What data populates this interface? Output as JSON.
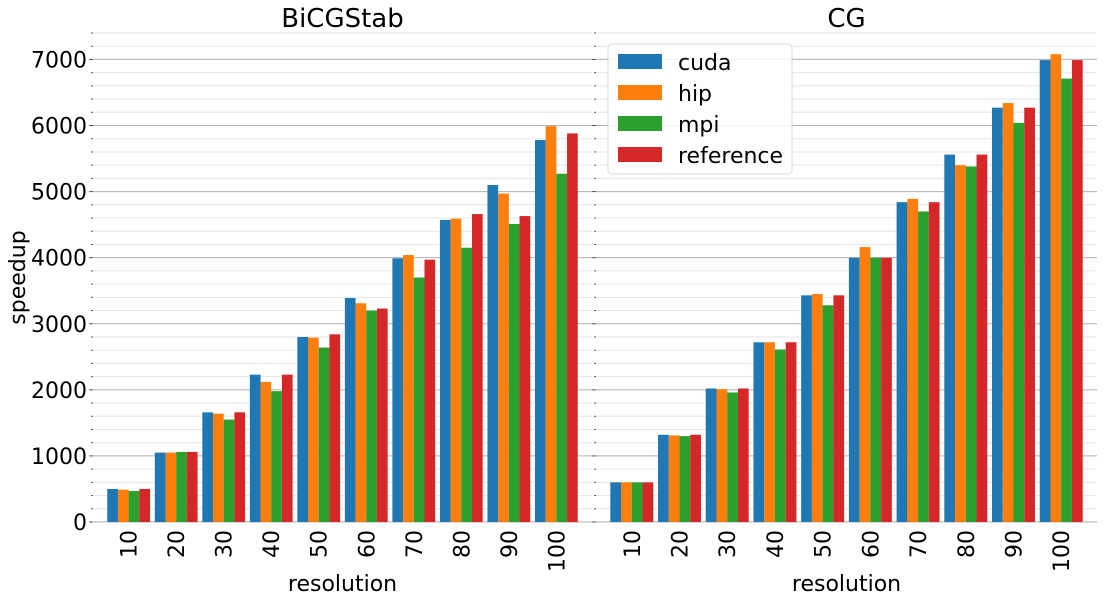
{
  "chart_data": {
    "type": "bar",
    "ylabel": "speedup",
    "ylim": [
      0,
      7400
    ],
    "yticks": [
      0,
      1000,
      2000,
      3000,
      4000,
      5000,
      6000,
      7000
    ],
    "grid": "horizontal",
    "legend_position": "top-left of second panel",
    "series_names": [
      "cuda",
      "hip",
      "mpi",
      "reference"
    ],
    "colors": [
      "#1f77b4",
      "#ff7f0e",
      "#2ca02c",
      "#d62728"
    ],
    "panels": [
      {
        "title": "BiCGStab",
        "xlabel": "resolution",
        "categories": [
          "10",
          "20",
          "30",
          "40",
          "50",
          "60",
          "70",
          "80",
          "90",
          "100"
        ],
        "series": [
          {
            "name": "cuda",
            "values": [
              500,
              1050,
              1660,
              2230,
              2800,
              3390,
              3990,
              4570,
              5100,
              5780
            ]
          },
          {
            "name": "hip",
            "values": [
              490,
              1050,
              1640,
              2120,
              2790,
              3310,
              4040,
              4590,
              4970,
              5990
            ]
          },
          {
            "name": "mpi",
            "values": [
              470,
              1060,
              1550,
              1980,
              2640,
              3200,
              3700,
              4150,
              4510,
              5270
            ]
          },
          {
            "name": "reference",
            "values": [
              500,
              1060,
              1660,
              2230,
              2840,
              3230,
              3970,
              4660,
              4630,
              5880
            ]
          }
        ]
      },
      {
        "title": "CG",
        "xlabel": "resolution",
        "categories": [
          "10",
          "20",
          "30",
          "40",
          "50",
          "60",
          "70",
          "80",
          "90",
          "100"
        ],
        "series": [
          {
            "name": "cuda",
            "values": [
              600,
              1320,
              2020,
              2720,
              3430,
              4000,
              4840,
              5560,
              6270,
              6990
            ]
          },
          {
            "name": "hip",
            "values": [
              600,
              1310,
              2010,
              2720,
              3450,
              4160,
              4890,
              5400,
              6340,
              7080
            ]
          },
          {
            "name": "mpi",
            "values": [
              600,
              1300,
              1960,
              2610,
              3280,
              4000,
              4700,
              5380,
              6040,
              6710
            ]
          },
          {
            "name": "reference",
            "values": [
              600,
              1320,
              2020,
              2720,
              3430,
              4000,
              4840,
              5560,
              6270,
              6990
            ]
          }
        ]
      }
    ]
  }
}
